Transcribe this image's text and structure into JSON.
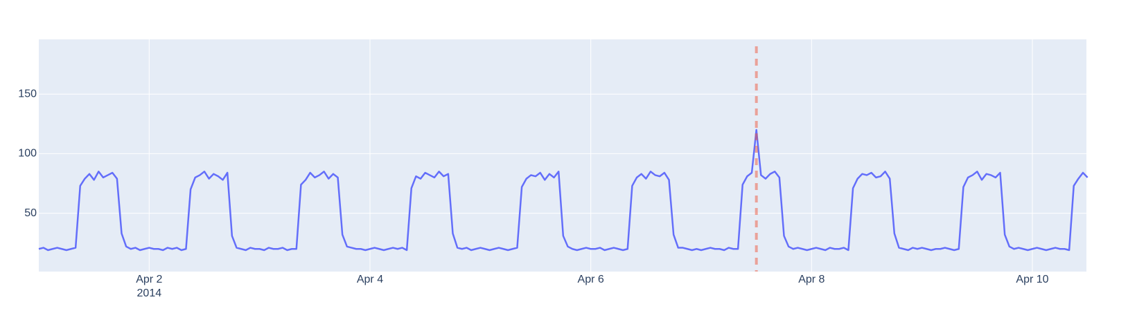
{
  "chart_data": {
    "type": "line",
    "x": [
      "2014-04-01 00:00",
      "2014-04-01 01:00",
      "2014-04-01 02:00",
      "2014-04-01 03:00",
      "2014-04-01 04:00",
      "2014-04-01 05:00",
      "2014-04-01 06:00",
      "2014-04-01 07:00",
      "2014-04-01 08:00",
      "2014-04-01 09:00",
      "2014-04-01 10:00",
      "2014-04-01 11:00",
      "2014-04-01 12:00",
      "2014-04-01 13:00",
      "2014-04-01 14:00",
      "2014-04-01 15:00",
      "2014-04-01 16:00",
      "2014-04-01 17:00",
      "2014-04-01 18:00",
      "2014-04-01 19:00",
      "2014-04-01 20:00",
      "2014-04-01 21:00",
      "2014-04-01 22:00",
      "2014-04-01 23:00",
      "2014-04-02 00:00",
      "2014-04-02 01:00",
      "2014-04-02 02:00",
      "2014-04-02 03:00",
      "2014-04-02 04:00",
      "2014-04-02 05:00",
      "2014-04-02 06:00",
      "2014-04-02 07:00",
      "2014-04-02 08:00",
      "2014-04-02 09:00",
      "2014-04-02 10:00",
      "2014-04-02 11:00",
      "2014-04-02 12:00",
      "2014-04-02 13:00",
      "2014-04-02 14:00",
      "2014-04-02 15:00",
      "2014-04-02 16:00",
      "2014-04-02 17:00",
      "2014-04-02 18:00",
      "2014-04-02 19:00",
      "2014-04-02 20:00",
      "2014-04-02 21:00",
      "2014-04-02 22:00",
      "2014-04-02 23:00",
      "2014-04-03 00:00",
      "2014-04-03 01:00",
      "2014-04-03 02:00",
      "2014-04-03 03:00",
      "2014-04-03 04:00",
      "2014-04-03 05:00",
      "2014-04-03 06:00",
      "2014-04-03 07:00",
      "2014-04-03 08:00",
      "2014-04-03 09:00",
      "2014-04-03 10:00",
      "2014-04-03 11:00",
      "2014-04-03 12:00",
      "2014-04-03 13:00",
      "2014-04-03 14:00",
      "2014-04-03 15:00",
      "2014-04-03 16:00",
      "2014-04-03 17:00",
      "2014-04-03 18:00",
      "2014-04-03 19:00",
      "2014-04-03 20:00",
      "2014-04-03 21:00",
      "2014-04-03 22:00",
      "2014-04-03 23:00",
      "2014-04-04 00:00",
      "2014-04-04 01:00",
      "2014-04-04 02:00",
      "2014-04-04 03:00",
      "2014-04-04 04:00",
      "2014-04-04 05:00",
      "2014-04-04 06:00",
      "2014-04-04 07:00",
      "2014-04-04 08:00",
      "2014-04-04 09:00",
      "2014-04-04 10:00",
      "2014-04-04 11:00",
      "2014-04-04 12:00",
      "2014-04-04 13:00",
      "2014-04-04 14:00",
      "2014-04-04 15:00",
      "2014-04-04 16:00",
      "2014-04-04 17:00",
      "2014-04-04 18:00",
      "2014-04-04 19:00",
      "2014-04-04 20:00",
      "2014-04-04 21:00",
      "2014-04-04 22:00",
      "2014-04-04 23:00",
      "2014-04-05 00:00",
      "2014-04-05 01:00",
      "2014-04-05 02:00",
      "2014-04-05 03:00",
      "2014-04-05 04:00",
      "2014-04-05 05:00",
      "2014-04-05 06:00",
      "2014-04-05 07:00",
      "2014-04-05 08:00",
      "2014-04-05 09:00",
      "2014-04-05 10:00",
      "2014-04-05 11:00",
      "2014-04-05 12:00",
      "2014-04-05 13:00",
      "2014-04-05 14:00",
      "2014-04-05 15:00",
      "2014-04-05 16:00",
      "2014-04-05 17:00",
      "2014-04-05 18:00",
      "2014-04-05 19:00",
      "2014-04-05 20:00",
      "2014-04-05 21:00",
      "2014-04-05 22:00",
      "2014-04-05 23:00",
      "2014-04-06 00:00",
      "2014-04-06 01:00",
      "2014-04-06 02:00",
      "2014-04-06 03:00",
      "2014-04-06 04:00",
      "2014-04-06 05:00",
      "2014-04-06 06:00",
      "2014-04-06 07:00",
      "2014-04-06 08:00",
      "2014-04-06 09:00",
      "2014-04-06 10:00",
      "2014-04-06 11:00",
      "2014-04-06 12:00",
      "2014-04-06 13:00",
      "2014-04-06 14:00",
      "2014-04-06 15:00",
      "2014-04-06 16:00",
      "2014-04-06 17:00",
      "2014-04-06 18:00",
      "2014-04-06 19:00",
      "2014-04-06 20:00",
      "2014-04-06 21:00",
      "2014-04-06 22:00",
      "2014-04-06 23:00",
      "2014-04-07 00:00",
      "2014-04-07 01:00",
      "2014-04-07 02:00",
      "2014-04-07 03:00",
      "2014-04-07 04:00",
      "2014-04-07 05:00",
      "2014-04-07 06:00",
      "2014-04-07 07:00",
      "2014-04-07 08:00",
      "2014-04-07 09:00",
      "2014-04-07 10:00",
      "2014-04-07 11:00",
      "2014-04-07 12:00",
      "2014-04-07 13:00",
      "2014-04-07 14:00",
      "2014-04-07 15:00",
      "2014-04-07 16:00",
      "2014-04-07 17:00",
      "2014-04-07 18:00",
      "2014-04-07 19:00",
      "2014-04-07 20:00",
      "2014-04-07 21:00",
      "2014-04-07 22:00",
      "2014-04-07 23:00",
      "2014-04-08 00:00",
      "2014-04-08 01:00",
      "2014-04-08 02:00",
      "2014-04-08 03:00",
      "2014-04-08 04:00",
      "2014-04-08 05:00",
      "2014-04-08 06:00",
      "2014-04-08 07:00",
      "2014-04-08 08:00",
      "2014-04-08 09:00",
      "2014-04-08 10:00",
      "2014-04-08 11:00",
      "2014-04-08 12:00",
      "2014-04-08 13:00",
      "2014-04-08 14:00",
      "2014-04-08 15:00",
      "2014-04-08 16:00",
      "2014-04-08 17:00",
      "2014-04-08 18:00",
      "2014-04-08 19:00",
      "2014-04-08 20:00",
      "2014-04-08 21:00",
      "2014-04-08 22:00",
      "2014-04-08 23:00",
      "2014-04-09 00:00",
      "2014-04-09 01:00",
      "2014-04-09 02:00",
      "2014-04-09 03:00",
      "2014-04-09 04:00",
      "2014-04-09 05:00",
      "2014-04-09 06:00",
      "2014-04-09 07:00",
      "2014-04-09 08:00",
      "2014-04-09 09:00",
      "2014-04-09 10:00",
      "2014-04-09 11:00",
      "2014-04-09 12:00",
      "2014-04-09 13:00",
      "2014-04-09 14:00",
      "2014-04-09 15:00",
      "2014-04-09 16:00",
      "2014-04-09 17:00",
      "2014-04-09 18:00",
      "2014-04-09 19:00",
      "2014-04-09 20:00",
      "2014-04-09 21:00",
      "2014-04-09 22:00",
      "2014-04-09 23:00",
      "2014-04-10 00:00",
      "2014-04-10 01:00",
      "2014-04-10 02:00",
      "2014-04-10 03:00",
      "2014-04-10 04:00",
      "2014-04-10 05:00",
      "2014-04-10 06:00",
      "2014-04-10 07:00",
      "2014-04-10 08:00",
      "2014-04-10 09:00",
      "2014-04-10 10:00",
      "2014-04-10 11:00",
      "2014-04-10 12:00"
    ],
    "series": [
      {
        "color": "#636efa",
        "values": [
          20,
          21,
          19,
          20,
          21,
          20,
          19,
          20,
          21,
          73,
          79,
          83,
          78,
          85,
          80,
          82,
          84,
          79,
          33,
          22,
          20,
          21,
          19,
          20,
          21,
          20,
          20,
          19,
          21,
          20,
          21,
          19,
          20,
          70,
          80,
          82,
          85,
          79,
          83,
          81,
          78,
          84,
          31,
          21,
          20,
          19,
          21,
          20,
          20,
          19,
          21,
          20,
          20,
          21,
          19,
          20,
          20,
          74,
          78,
          84,
          80,
          82,
          85,
          79,
          83,
          80,
          32,
          22,
          21,
          20,
          20,
          19,
          20,
          21,
          20,
          19,
          20,
          21,
          20,
          21,
          19,
          71,
          81,
          79,
          84,
          82,
          80,
          85,
          81,
          83,
          33,
          21,
          20,
          21,
          19,
          20,
          21,
          20,
          19,
          20,
          21,
          20,
          19,
          20,
          21,
          72,
          79,
          82,
          81,
          84,
          78,
          83,
          80,
          85,
          31,
          22,
          20,
          19,
          20,
          21,
          20,
          20,
          21,
          19,
          20,
          21,
          20,
          19,
          20,
          73,
          80,
          83,
          79,
          85,
          82,
          81,
          84,
          78,
          32,
          21,
          21,
          20,
          19,
          20,
          19,
          20,
          21,
          20,
          20,
          19,
          21,
          20,
          20,
          74,
          81,
          84,
          120,
          82,
          79,
          83,
          85,
          80,
          31,
          22,
          20,
          21,
          20,
          19,
          20,
          21,
          20,
          19,
          21,
          20,
          20,
          21,
          19,
          71,
          79,
          83,
          82,
          84,
          80,
          81,
          85,
          79,
          33,
          21,
          20,
          19,
          21,
          20,
          21,
          20,
          19,
          20,
          20,
          21,
          20,
          19,
          20,
          72,
          80,
          82,
          85,
          78,
          83,
          82,
          80,
          84,
          32,
          22,
          20,
          21,
          20,
          19,
          20,
          21,
          20,
          19,
          20,
          21,
          20,
          20,
          19,
          73,
          79,
          84,
          80
        ]
      }
    ],
    "xlim": [
      "2014-04-01 00:00",
      "2014-04-10 11:45"
    ],
    "xticks": [
      {
        "value": "2014-04-02 00:00",
        "label": "Apr 2"
      },
      {
        "value": "2014-04-04 00:00",
        "label": "Apr 4"
      },
      {
        "value": "2014-04-06 00:00",
        "label": "Apr 6"
      },
      {
        "value": "2014-04-08 00:00",
        "label": "Apr 8"
      },
      {
        "value": "2014-04-10 00:00",
        "label": "Apr 10"
      }
    ],
    "x_year_label": "2014",
    "ylim": [
      1,
      196
    ],
    "yticks": [
      50,
      100,
      150
    ],
    "grid": true,
    "vline": {
      "x": "2014-04-07 12:00",
      "color": "rgba(239,85,59,0.5)"
    }
  }
}
